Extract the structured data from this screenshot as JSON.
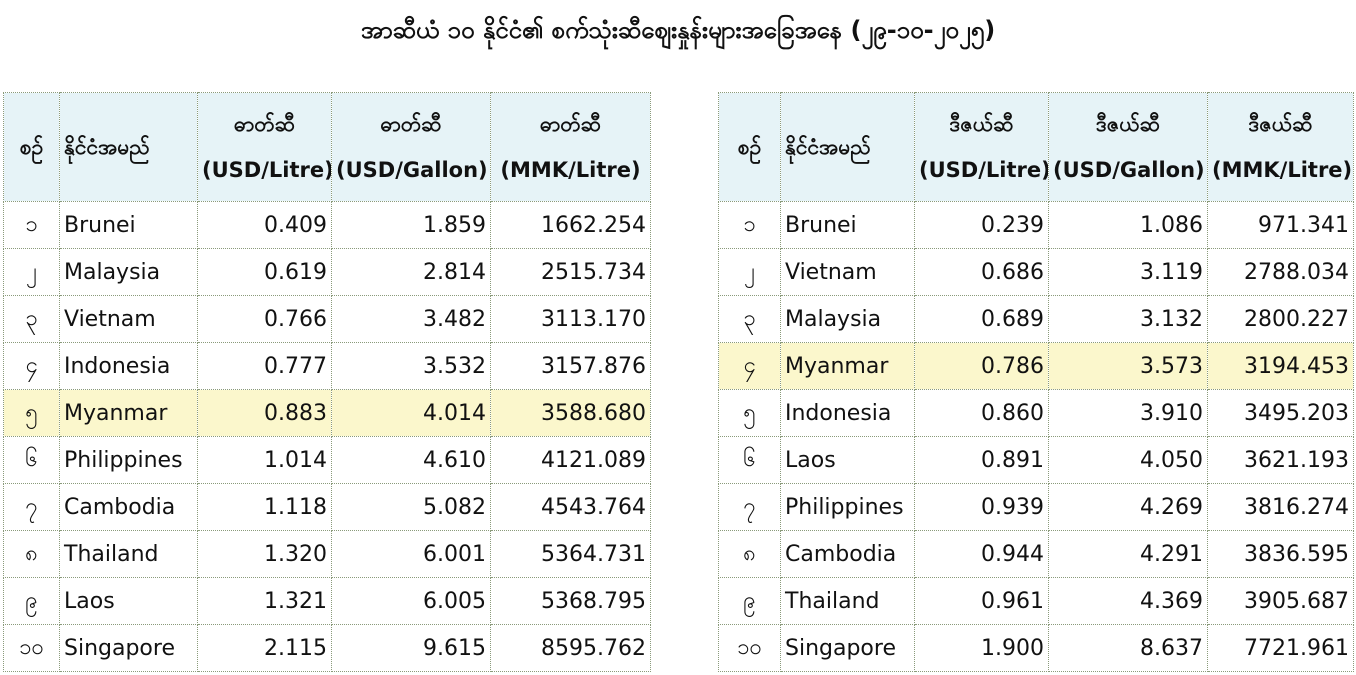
{
  "title": "အာဆီယံ ၁၀ နိုင်ငံ၏ စက်သုံးဆီဈေးနှုန်းများအခြေအနေ (၂၉-၁၀-၂၀၂၅)",
  "tables": [
    {
      "header": [
        [
          "စဉ်"
        ],
        [
          "နိုင်ငံအမည်"
        ],
        [
          "ဓာတ်ဆီ",
          "(USD/Litre)"
        ],
        [
          "ဓာတ်ဆီ",
          "(USD/Gallon)"
        ],
        [
          "ဓာတ်ဆီ",
          "(MMK/Litre)"
        ]
      ],
      "highlight_row": 4,
      "rows": [
        [
          "၁",
          "Brunei",
          "0.409",
          "1.859",
          "1662.254"
        ],
        [
          "၂",
          "Malaysia",
          "0.619",
          "2.814",
          "2515.734"
        ],
        [
          "၃",
          "Vietnam",
          "0.766",
          "3.482",
          "3113.170"
        ],
        [
          "၄",
          "Indonesia",
          "0.777",
          "3.532",
          "3157.876"
        ],
        [
          "၅",
          "Myanmar",
          "0.883",
          "4.014",
          "3588.680"
        ],
        [
          "၆",
          "Philippines",
          "1.014",
          "4.610",
          "4121.089"
        ],
        [
          "၇",
          "Cambodia",
          "1.118",
          "5.082",
          "4543.764"
        ],
        [
          "၈",
          "Thailand",
          "1.320",
          "6.001",
          "5364.731"
        ],
        [
          "၉",
          "Laos",
          "1.321",
          "6.005",
          "5368.795"
        ],
        [
          "၁၀",
          "Singapore",
          "2.115",
          "9.615",
          "8595.762"
        ]
      ]
    },
    {
      "header": [
        [
          "စဉ်"
        ],
        [
          "နိုင်ငံအမည်"
        ],
        [
          "ဒီဇယ်ဆီ",
          "(USD/Litre)"
        ],
        [
          "ဒီဇယ်ဆီ",
          "(USD/Gallon)"
        ],
        [
          "ဒီဇယ်ဆီ",
          "(MMK/Litre)"
        ]
      ],
      "highlight_row": 3,
      "rows": [
        [
          "၁",
          "Brunei",
          "0.239",
          "1.086",
          "971.341"
        ],
        [
          "၂",
          "Vietnam",
          "0.686",
          "3.119",
          "2788.034"
        ],
        [
          "၃",
          "Malaysia",
          "0.689",
          "3.132",
          "2800.227"
        ],
        [
          "၄",
          "Myanmar",
          "0.786",
          "3.573",
          "3194.453"
        ],
        [
          "၅",
          "Indonesia",
          "0.860",
          "3.910",
          "3495.203"
        ],
        [
          "၆",
          "Laos",
          "0.891",
          "4.050",
          "3621.193"
        ],
        [
          "၇",
          "Philippines",
          "0.939",
          "4.269",
          "3816.274"
        ],
        [
          "၈",
          "Cambodia",
          "0.944",
          "4.291",
          "3836.595"
        ],
        [
          "၉",
          "Thailand",
          "0.961",
          "4.369",
          "3905.687"
        ],
        [
          "၁၀",
          "Singapore",
          "1.900",
          "8.637",
          "7721.961"
        ]
      ]
    }
  ]
}
